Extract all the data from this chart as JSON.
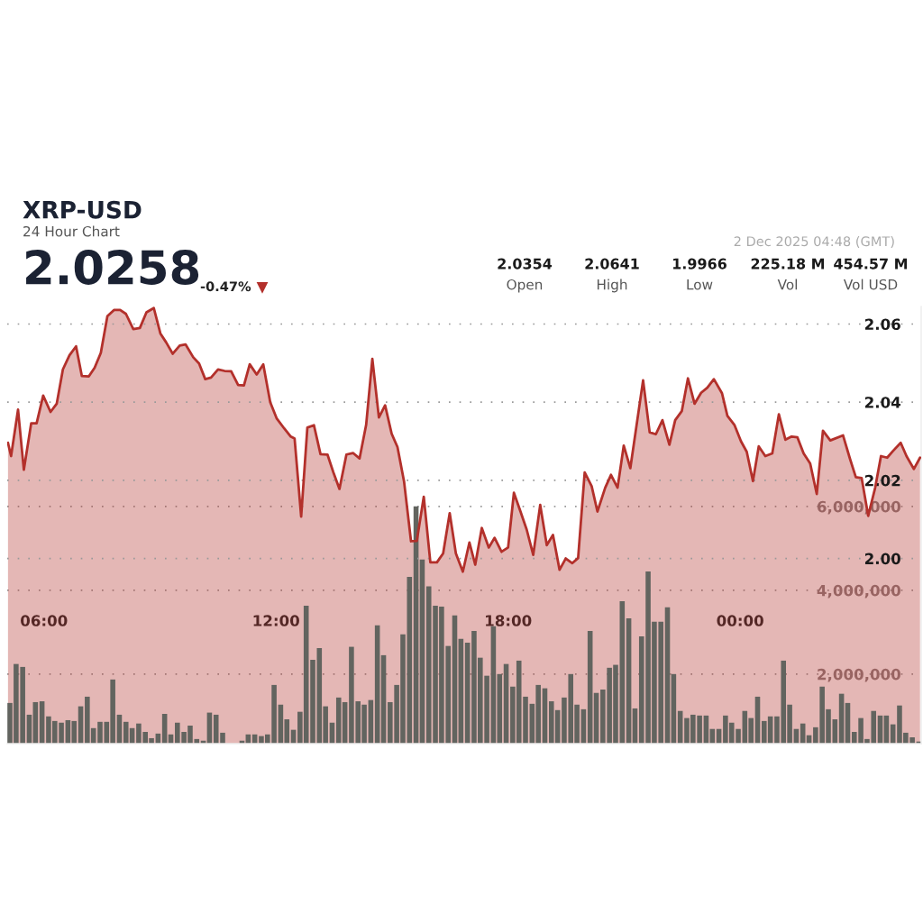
{
  "chart_data": {
    "type": "area",
    "title": "XRP-USD",
    "subtitle": "24 Hour Chart",
    "annotations": [
      "2.0258",
      "-0.47%",
      "▼",
      "2.0354",
      "Open",
      "2.0641",
      "High",
      "1.9966",
      "Low",
      "225.18 M",
      "Vol",
      "454.57 M",
      "Vol USD",
      "2 Dec 2025 04:48 (GMT)"
    ],
    "xlim": [
      5.05,
      28.68
    ],
    "xticks": [
      {
        "value": 6,
        "label": "06:00"
      },
      {
        "value": 12,
        "label": "12:00"
      },
      {
        "value": 18,
        "label": "18:00"
      },
      {
        "value": 24,
        "label": "00:00"
      }
    ],
    "ylim": [
      1.9526,
      2.0645
    ],
    "yticks": [
      {
        "value": 2.0,
        "label": "2.00"
      },
      {
        "value": 2.02,
        "label": "2.02"
      },
      {
        "value": 2.04,
        "label": "2.04"
      },
      {
        "value": 2.06,
        "label": "2.06"
      }
    ],
    "y2lim": [
      340000,
      10770000
    ],
    "y2ticks": [
      {
        "value": 2000000,
        "label": "2,000,000"
      },
      {
        "value": 4000000,
        "label": "4,000,000"
      },
      {
        "value": 6000000,
        "label": "6,000,000"
      }
    ],
    "grid": "y",
    "series": [
      {
        "color": "#b3302b",
        "x": [
          5.07,
          5.15,
          5.33,
          5.48,
          5.67,
          5.81,
          5.98,
          6.17,
          6.33,
          6.49,
          6.66,
          6.83,
          6.98,
          7.16,
          7.31,
          7.47,
          7.64,
          7.81,
          7.97,
          8.12,
          8.31,
          8.48,
          8.65,
          8.84,
          9.01,
          9.16,
          9.33,
          9.51,
          9.66,
          9.86,
          10.01,
          10.17,
          10.32,
          10.5,
          10.67,
          10.84,
          11.02,
          11.17,
          11.32,
          11.5,
          11.67,
          11.85,
          12.02,
          12.21,
          12.38,
          12.48,
          12.65,
          12.81,
          12.98,
          13.15,
          13.33,
          13.48,
          13.64,
          13.82,
          13.99,
          14.16,
          14.33,
          14.49,
          14.66,
          14.82,
          14.99,
          15.14,
          15.31,
          15.49,
          15.64,
          15.82,
          15.99,
          16.16,
          16.32,
          16.49,
          16.65,
          16.83,
          17.0,
          17.15,
          17.32,
          17.5,
          17.65,
          17.83,
          18.0,
          18.15,
          18.32,
          18.48,
          18.65,
          18.83,
          19.0,
          19.16,
          19.33,
          19.49,
          19.66,
          19.81,
          19.98,
          20.16,
          20.31,
          20.51,
          20.66,
          20.83,
          20.99,
          21.16,
          21.49,
          21.66,
          21.82,
          21.99,
          22.17,
          22.32,
          22.49,
          22.65,
          22.82,
          22.99,
          23.15,
          23.32,
          23.53,
          23.67,
          23.85,
          24.02,
          24.17,
          24.33,
          24.48,
          24.65,
          24.83,
          25.0,
          25.17,
          25.33,
          25.48,
          25.64,
          25.81,
          25.98,
          26.14,
          26.33,
          26.66,
          26.83,
          26.99,
          27.14,
          27.31,
          27.49,
          27.64,
          27.8,
          27.95,
          28.15,
          28.3,
          28.49,
          28.65
        ],
        "values": [
          2.0296,
          2.0262,
          2.0381,
          2.0227,
          2.0346,
          2.0346,
          2.0417,
          2.0375,
          2.0396,
          2.0484,
          2.052,
          2.0543,
          2.0467,
          2.0466,
          2.0488,
          2.0526,
          2.062,
          2.0636,
          2.0636,
          2.0626,
          2.0587,
          2.059,
          2.063,
          2.0641,
          2.0576,
          2.0553,
          2.0524,
          2.0545,
          2.0548,
          2.0515,
          2.0499,
          2.0459,
          2.0463,
          2.0484,
          2.048,
          2.0479,
          2.0444,
          2.0443,
          2.0497,
          2.0471,
          2.0497,
          2.04,
          2.0358,
          2.0333,
          2.0312,
          2.0307,
          2.0107,
          2.0335,
          2.0341,
          2.0267,
          2.0266,
          2.0221,
          2.0178,
          2.0266,
          2.027,
          2.0256,
          2.0342,
          2.0511,
          2.0361,
          2.0392,
          2.0319,
          2.0285,
          2.0197,
          2.0044,
          2.0045,
          2.0158,
          1.999,
          1.999,
          2.0013,
          2.0116,
          2.0013,
          1.9966,
          2.0041,
          1.9984,
          2.0078,
          2.0028,
          2.0053,
          2.0017,
          2.0028,
          2.0168,
          2.012,
          2.0074,
          2.0009,
          2.0137,
          2.0034,
          2.006,
          1.9971,
          2.0,
          1.9988,
          2.0001,
          2.022,
          2.0185,
          2.012,
          2.0181,
          2.0214,
          2.0181,
          2.0289,
          2.0231,
          2.0456,
          2.0323,
          2.0318,
          2.0354,
          2.0291,
          2.0354,
          2.0377,
          2.0461,
          2.0396,
          2.0424,
          2.0437,
          2.0459,
          2.0423,
          2.0365,
          2.0342,
          2.03,
          2.0273,
          2.0198,
          2.0287,
          2.0262,
          2.0269,
          2.0369,
          2.0304,
          2.0312,
          2.031,
          2.0269,
          2.0243,
          2.0165,
          2.0327,
          2.0302,
          2.0315,
          2.0258,
          2.0208,
          2.0206,
          2.0109,
          2.0181,
          2.0262,
          2.0258,
          2.0275,
          2.0296,
          2.0262,
          2.0229,
          2.0258
        ]
      },
      {
        "type": "bar",
        "axis": "y2",
        "color": "#62645f",
        "x": [
          5.12,
          5.28,
          5.45,
          5.62,
          5.78,
          5.95,
          6.12,
          6.28,
          6.45,
          6.62,
          6.78,
          6.95,
          7.12,
          7.28,
          7.45,
          7.62,
          7.78,
          7.95,
          8.12,
          8.28,
          8.45,
          8.62,
          8.78,
          8.95,
          9.12,
          9.28,
          9.45,
          9.62,
          9.78,
          9.95,
          10.12,
          10.28,
          10.45,
          10.62,
          10.78,
          10.95,
          11.12,
          11.28,
          11.45,
          11.62,
          11.78,
          11.95,
          12.12,
          12.28,
          12.45,
          12.62,
          12.78,
          12.95,
          13.12,
          13.28,
          13.45,
          13.62,
          13.78,
          13.95,
          14.12,
          14.28,
          14.45,
          14.62,
          14.78,
          14.95,
          15.12,
          15.28,
          15.45,
          15.62,
          15.78,
          15.95,
          16.12,
          16.28,
          16.45,
          16.62,
          16.78,
          16.95,
          17.12,
          17.28,
          17.45,
          17.62,
          17.78,
          17.95,
          18.12,
          18.28,
          18.45,
          18.62,
          18.78,
          18.95,
          19.12,
          19.28,
          19.45,
          19.62,
          19.78,
          19.95,
          20.12,
          20.28,
          20.45,
          20.62,
          20.78,
          20.95,
          21.12,
          21.28,
          21.45,
          21.62,
          21.78,
          21.95,
          22.12,
          22.28,
          22.45,
          22.62,
          22.78,
          22.95,
          23.12,
          23.28,
          23.45,
          23.62,
          23.78,
          23.95,
          24.12,
          24.28,
          24.45,
          24.62,
          24.78,
          24.95,
          25.12,
          25.28,
          25.45,
          25.62,
          25.78,
          25.95,
          26.12,
          26.28,
          26.45,
          26.62,
          26.78,
          26.95,
          27.12,
          27.28,
          27.45,
          27.62,
          27.78,
          27.95,
          28.12,
          28.28,
          28.45,
          28.62
        ],
        "values": [
          1310000,
          2240000,
          2170000,
          1030000,
          1330000,
          1350000,
          990000,
          880000,
          840000,
          900000,
          880000,
          1230000,
          1460000,
          710000,
          860000,
          860000,
          1870000,
          1030000,
          860000,
          710000,
          820000,
          620000,
          470000,
          580000,
          1050000,
          560000,
          840000,
          620000,
          770000,
          450000,
          410000,
          1080000,
          1030000,
          600000,
          null,
          null,
          410000,
          560000,
          560000,
          520000,
          560000,
          1740000,
          1270000,
          920000,
          670000,
          1100000,
          3630000,
          2340000,
          2620000,
          1230000,
          840000,
          1440000,
          1330000,
          2650000,
          1350000,
          1270000,
          1380000,
          3160000,
          2450000,
          1330000,
          1740000,
          2950000,
          4320000,
          6000000,
          4730000,
          4090000,
          3630000,
          3610000,
          2670000,
          3400000,
          2840000,
          2750000,
          3030000,
          2390000,
          1960000,
          3140000,
          2000000,
          2240000,
          1700000,
          2320000,
          1460000,
          1290000,
          1740000,
          1660000,
          1350000,
          1140000,
          1440000,
          2000000,
          1270000,
          1160000,
          3030000,
          1550000,
          1630000,
          2150000,
          2220000,
          3740000,
          3330000,
          1180000,
          2900000,
          4450000,
          3250000,
          3250000,
          3590000,
          2000000,
          1120000,
          950000,
          1030000,
          1010000,
          1010000,
          690000,
          690000,
          1010000,
          840000,
          690000,
          1120000,
          950000,
          1460000,
          880000,
          990000,
          990000,
          2320000,
          1270000,
          690000,
          820000,
          540000,
          730000,
          1700000,
          1160000,
          920000,
          1530000,
          1310000,
          620000,
          950000,
          450000,
          1120000,
          1010000,
          1010000,
          800000,
          1250000,
          600000,
          490000,
          390000
        ]
      }
    ]
  }
}
